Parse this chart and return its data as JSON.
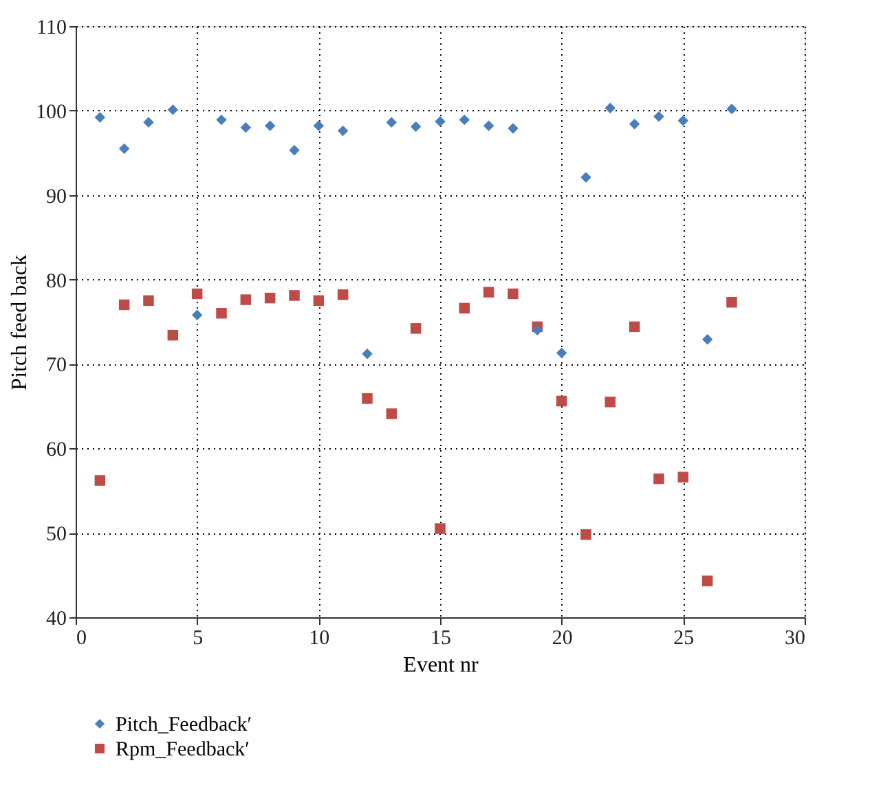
{
  "chart_data": {
    "type": "scatter",
    "xlabel": "Event nr",
    "ylabel": "Pitch feed back",
    "x": [
      1,
      2,
      3,
      4,
      5,
      6,
      7,
      8,
      9,
      10,
      11,
      12,
      13,
      14,
      15,
      16,
      17,
      18,
      19,
      20,
      21,
      22,
      23,
      24,
      25,
      26,
      27
    ],
    "series": [
      {
        "name": "Pitch_Feedback′",
        "color": "#4a7ebb",
        "marker": "diamond",
        "values": [
          99.2,
          95.5,
          98.6,
          100.1,
          75.8,
          98.9,
          98.0,
          98.2,
          95.3,
          98.2,
          97.6,
          71.2,
          98.6,
          98.1,
          98.7,
          98.9,
          98.2,
          97.9,
          74.0,
          71.3,
          92.1,
          100.3,
          98.4,
          99.3,
          98.8,
          72.9,
          100.2
        ]
      },
      {
        "name": "Rpm_Feedback′",
        "color": "#be4b48",
        "marker": "square",
        "values": [
          56.2,
          77.0,
          77.5,
          73.4,
          78.3,
          76.0,
          77.6,
          77.8,
          78.1,
          77.5,
          78.2,
          65.9,
          64.1,
          74.2,
          50.5,
          76.6,
          78.5,
          78.3,
          74.4,
          65.6,
          49.8,
          65.5,
          74.4,
          56.4,
          56.6,
          44.3,
          77.3
        ]
      }
    ],
    "xlim": [
      0,
      30
    ],
    "xticks": [
      0,
      5,
      10,
      15,
      20,
      25,
      30
    ],
    "ylim": [
      40,
      110
    ],
    "yticks": [
      40,
      50,
      60,
      70,
      80,
      90,
      100,
      110
    ],
    "grid": true,
    "legend": "bottom left"
  }
}
